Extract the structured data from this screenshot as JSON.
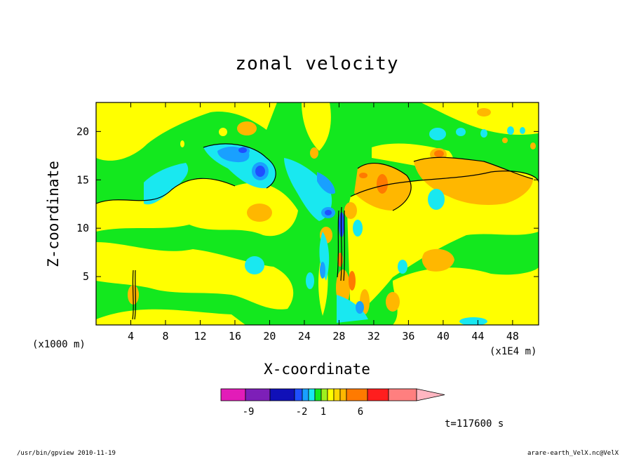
{
  "chart_data": {
    "type": "heatmap",
    "title": "zonal velocity",
    "xlabel": "X-coordinate",
    "ylabel": "Z-coordinate",
    "x_unit_label": "(x1E4 m)",
    "y_unit_label": "(x1000 m)",
    "x_ticks": [
      "4",
      "8",
      "12",
      "16",
      "20",
      "24",
      "28",
      "32",
      "36",
      "40",
      "44",
      "48"
    ],
    "y_ticks": [
      "5",
      "10",
      "15",
      "20"
    ],
    "xlim": [
      0,
      51
    ],
    "ylim": [
      0,
      23
    ],
    "colorbar": {
      "colors": [
        "#e21cb8",
        "#7d1fb8",
        "#1010b8",
        "#1f4fff",
        "#19a0ff",
        "#19e8f0",
        "#13e81e",
        "#9ff01e",
        "#ffff00",
        "#ffd800",
        "#ffb700",
        "#ff7a00",
        "#ff1e1e",
        "#ff7f7f",
        "#ffb6c1"
      ],
      "tick_labels": [
        "-9",
        "-2",
        "1",
        "6"
      ]
    },
    "colors": {
      "background": "#13e81e",
      "positive_weak": "#ffff00",
      "positive_mid": "#ffb700",
      "positive_strong": "#ff7a00",
      "negative_weak": "#19e8f0",
      "negative_mid": "#19a0ff",
      "negative_strong": "#1f4fff"
    }
  },
  "annotation": {
    "time": "t=117600 s"
  },
  "footer": {
    "left": "/usr/bin/gpview   2010-11-19",
    "right": "arare-earth_VelX.nc@VelX"
  }
}
